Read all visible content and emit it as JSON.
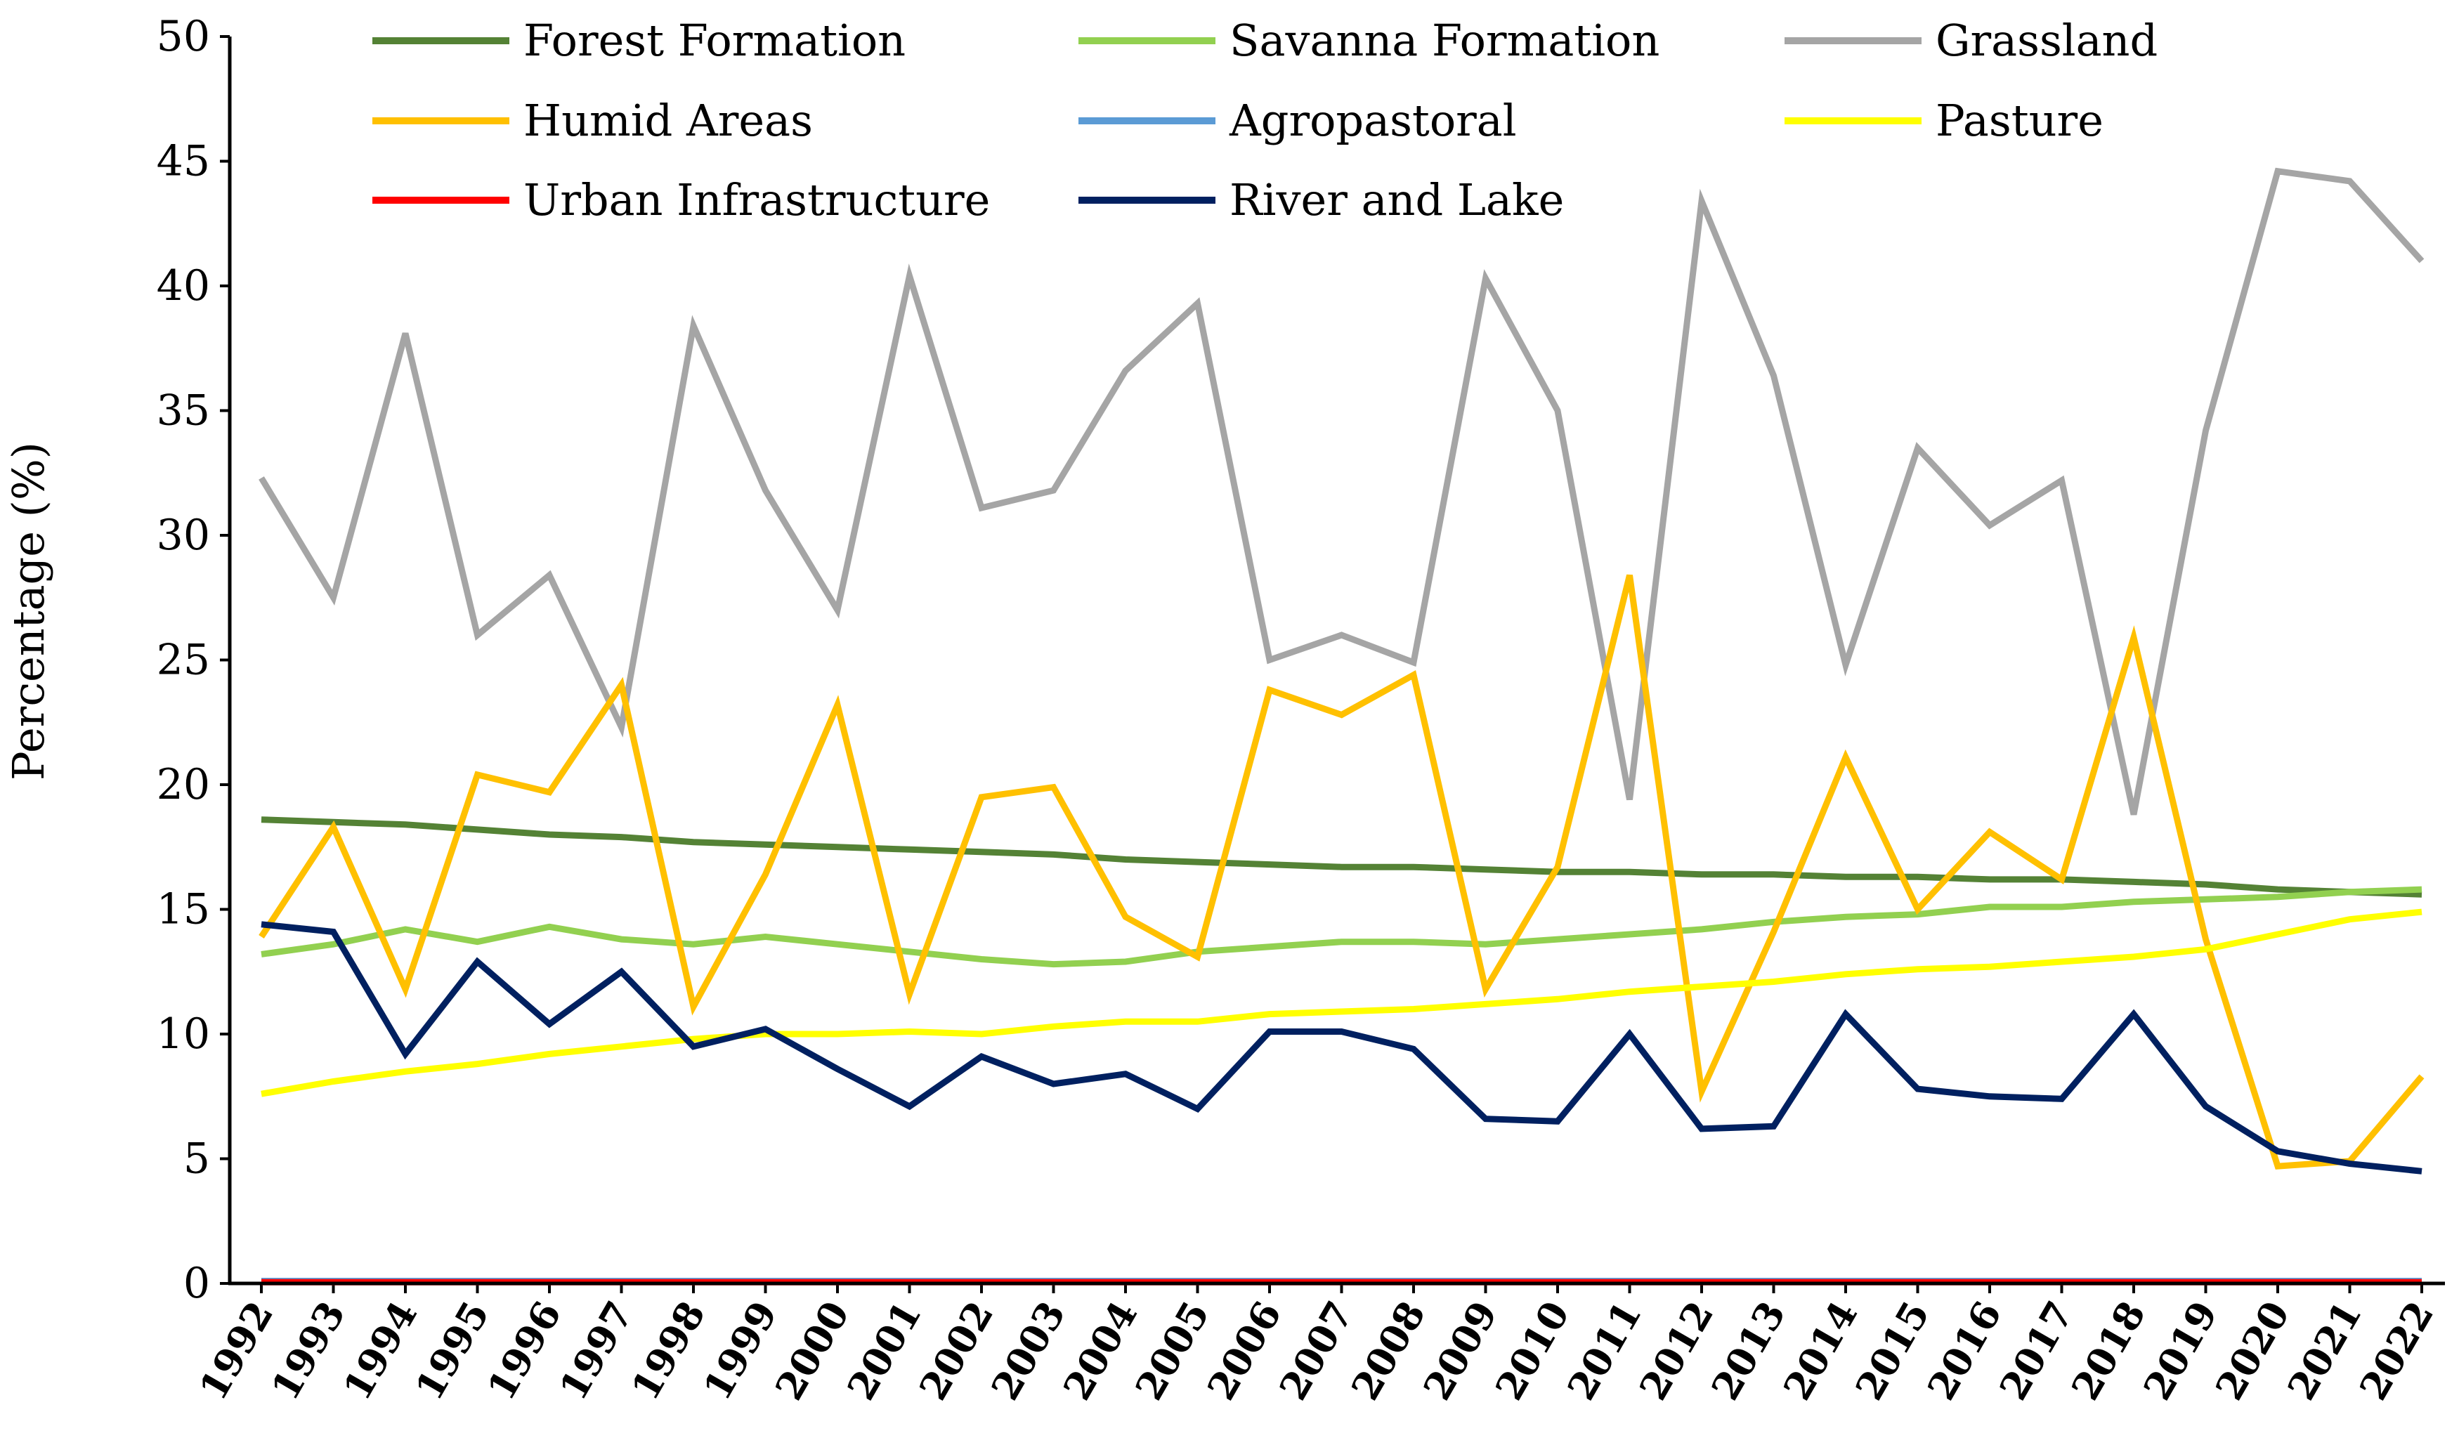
{
  "chart_data": {
    "type": "line",
    "title": "",
    "xlabel": "",
    "ylabel": "Percentage (%)",
    "ylim": [
      0,
      50
    ],
    "yticks": [
      0,
      5,
      10,
      15,
      20,
      25,
      30,
      35,
      40,
      45,
      50
    ],
    "grid": false,
    "legend_position": "top",
    "categories": [
      "1992",
      "1993",
      "1994",
      "1995",
      "1996",
      "1997",
      "1998",
      "1999",
      "2000",
      "2001",
      "2002",
      "2003",
      "2004",
      "2005",
      "2006",
      "2007",
      "2008",
      "2009",
      "2010",
      "2011",
      "2012",
      "2013",
      "2014",
      "2015",
      "2016",
      "2017",
      "2018",
      "2019",
      "2020",
      "2021",
      "2022"
    ],
    "series": [
      {
        "name": "Forest Formation",
        "color": "#548235",
        "values": [
          18.6,
          18.5,
          18.4,
          18.2,
          18.0,
          17.9,
          17.7,
          17.6,
          17.5,
          17.4,
          17.3,
          17.2,
          17.0,
          16.9,
          16.8,
          16.7,
          16.7,
          16.6,
          16.5,
          16.5,
          16.4,
          16.4,
          16.3,
          16.3,
          16.2,
          16.2,
          16.1,
          16.0,
          15.8,
          15.7,
          15.6
        ]
      },
      {
        "name": "Savanna Formation",
        "color": "#92D050",
        "values": [
          13.2,
          13.6,
          14.2,
          13.7,
          14.3,
          13.8,
          13.6,
          13.9,
          13.6,
          13.3,
          13.0,
          12.8,
          12.9,
          13.3,
          13.5,
          13.7,
          13.7,
          13.6,
          13.8,
          14.0,
          14.2,
          14.5,
          14.7,
          14.8,
          15.1,
          15.1,
          15.3,
          15.4,
          15.5,
          15.7,
          15.8
        ]
      },
      {
        "name": "Grassland",
        "color": "#A5A5A5",
        "values": [
          32.3,
          27.5,
          38.1,
          26.0,
          28.4,
          22.3,
          38.4,
          31.8,
          27.0,
          40.4,
          31.1,
          31.8,
          36.6,
          39.3,
          25.0,
          26.0,
          24.9,
          40.3,
          35.0,
          19.4,
          43.4,
          36.4,
          24.8,
          33.5,
          30.4,
          32.2,
          18.8,
          34.2,
          44.6,
          44.2,
          41.0
        ]
      },
      {
        "name": "Humid Areas",
        "color": "#FFC000",
        "values": [
          13.9,
          18.3,
          11.8,
          20.4,
          19.7,
          24.0,
          11.1,
          16.4,
          23.2,
          11.6,
          19.5,
          19.9,
          14.7,
          13.1,
          23.8,
          22.8,
          24.4,
          11.8,
          16.7,
          28.4,
          7.7,
          14.1,
          21.1,
          15.0,
          18.1,
          16.2,
          25.9,
          13.8,
          4.7,
          4.9,
          8.3
        ]
      },
      {
        "name": "Agropastoral",
        "color": "#5B9BD5",
        "values": [
          0.1,
          0.1,
          0.1,
          0.1,
          0.1,
          0.1,
          0.1,
          0.1,
          0.1,
          0.1,
          0.1,
          0.1,
          0.1,
          0.1,
          0.1,
          0.1,
          0.1,
          0.1,
          0.1,
          0.1,
          0.1,
          0.1,
          0.1,
          0.1,
          0.1,
          0.1,
          0.1,
          0.1,
          0.1,
          0.1,
          0.1
        ]
      },
      {
        "name": "Pasture",
        "color": "#FFFF00",
        "values": [
          7.6,
          8.1,
          8.5,
          8.8,
          9.2,
          9.5,
          9.8,
          10.0,
          10.0,
          10.1,
          10.0,
          10.3,
          10.5,
          10.5,
          10.8,
          10.9,
          11.0,
          11.2,
          11.4,
          11.7,
          11.9,
          12.1,
          12.4,
          12.6,
          12.7,
          12.9,
          13.1,
          13.4,
          14.0,
          14.6,
          14.9
        ]
      },
      {
        "name": "Urban Infrastructure",
        "color": "#FF0000",
        "values": [
          0.05,
          0.05,
          0.05,
          0.05,
          0.05,
          0.05,
          0.05,
          0.05,
          0.05,
          0.05,
          0.05,
          0.05,
          0.05,
          0.05,
          0.05,
          0.05,
          0.05,
          0.05,
          0.05,
          0.05,
          0.05,
          0.05,
          0.05,
          0.05,
          0.05,
          0.05,
          0.05,
          0.05,
          0.05,
          0.05,
          0.05
        ]
      },
      {
        "name": "River and Lake",
        "color": "#002060",
        "values": [
          14.4,
          14.1,
          9.2,
          12.9,
          10.4,
          12.5,
          9.5,
          10.2,
          8.6,
          7.1,
          9.1,
          8.0,
          8.4,
          7.0,
          10.1,
          10.1,
          9.4,
          6.6,
          6.5,
          10.0,
          6.2,
          6.3,
          10.8,
          7.8,
          7.5,
          7.4,
          10.8,
          7.1,
          5.3,
          4.8,
          4.5
        ]
      }
    ]
  }
}
